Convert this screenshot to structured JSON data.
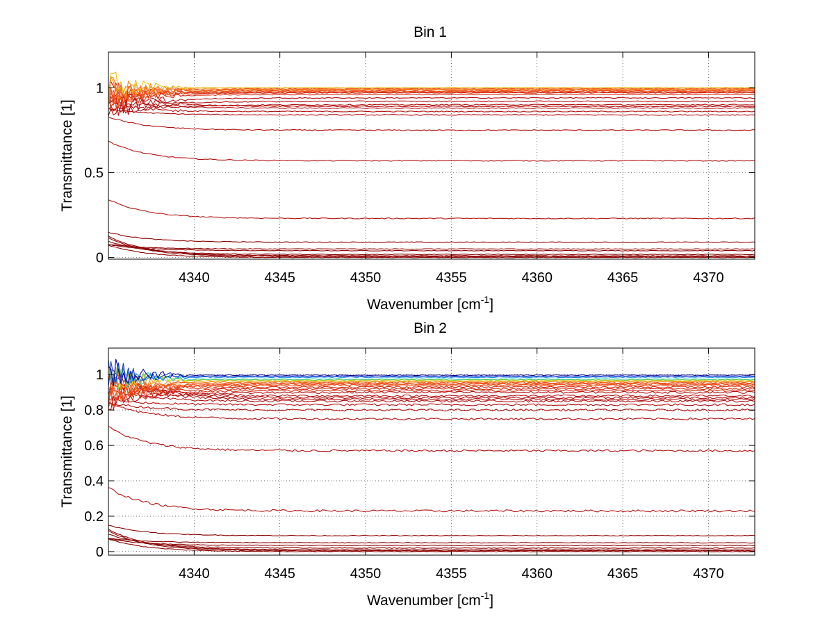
{
  "chart_data": [
    {
      "type": "line",
      "title": "Bin 1",
      "xlabel": "Wavenumber [cm",
      "xlabel_sup": "-1",
      "xlabel_end": "]",
      "ylabel": "Transmittance [1]",
      "xlim": [
        4335,
        4372.7
      ],
      "ylim": [
        -0.01,
        1.21
      ],
      "xticks": [
        4340,
        4345,
        4350,
        4355,
        4360,
        4365,
        4370
      ],
      "yticks": [
        0,
        0.5,
        1
      ],
      "ytick_labels": [
        "0",
        "0.5",
        "1"
      ],
      "grid": true,
      "series_groups": [
        {
          "color": "#8b0000",
          "levels": [
            0.0,
            0.005,
            0.01,
            0.018,
            0.04,
            0.05,
            0.09
          ],
          "start_offset": 0.12,
          "noise": 0.004
        },
        {
          "color": "#b21010",
          "levels": [
            0.23,
            0.57,
            0.75,
            0.84,
            0.86,
            0.88,
            0.89,
            0.9,
            0.92,
            0.94
          ],
          "start_offset": 0.12,
          "noise": 0.006
        },
        {
          "color": "#d4280f",
          "levels": [
            0.96,
            0.97,
            0.975
          ],
          "start_offset": 0.08,
          "noise": 0.005
        },
        {
          "color": "#f0501a",
          "levels": [
            0.98,
            0.985,
            0.99,
            0.995
          ],
          "start_offset": 0.1,
          "noise": 0.006
        },
        {
          "color": "#f78a1e",
          "levels": [
            0.99,
            1.0
          ],
          "start_offset": 0.05,
          "noise": 0.004
        },
        {
          "color": "#e9c21a",
          "levels": [
            1.0
          ],
          "start_offset": 0.0,
          "noise": 0.003
        }
      ]
    },
    {
      "type": "line",
      "title": "Bin 2",
      "xlabel": "Wavenumber [cm",
      "xlabel_sup": "-1",
      "xlabel_end": "]",
      "ylabel": "Transmittance [1]",
      "xlim": [
        4335,
        4372.7
      ],
      "ylim": [
        -0.02,
        1.15
      ],
      "xticks": [
        4340,
        4345,
        4350,
        4355,
        4360,
        4365,
        4370
      ],
      "yticks": [
        0,
        0.2,
        0.4,
        0.6,
        0.8,
        1
      ],
      "ytick_labels": [
        "0",
        "0.2",
        "0.4",
        "0.6",
        "0.8",
        "1"
      ],
      "grid": true,
      "series_groups": [
        {
          "color": "#8b0000",
          "levels": [
            0.0,
            0.005,
            0.01,
            0.02,
            0.035,
            0.05,
            0.09
          ],
          "start_offset": 0.12,
          "noise": 0.004
        },
        {
          "color": "#b21010",
          "levels": [
            0.23,
            0.57,
            0.75,
            0.8,
            0.83,
            0.85,
            0.86,
            0.87,
            0.88,
            0.9
          ],
          "start_offset": 0.14,
          "noise": 0.012
        },
        {
          "color": "#d4280f",
          "levels": [
            0.91,
            0.92,
            0.93
          ],
          "start_offset": 0.1,
          "noise": 0.01
        },
        {
          "color": "#f0501a",
          "levels": [
            0.94,
            0.945,
            0.95,
            0.955
          ],
          "start_offset": 0.12,
          "noise": 0.01
        },
        {
          "color": "#f78a1e",
          "levels": [
            0.96
          ],
          "start_offset": 0.06,
          "noise": 0.006
        },
        {
          "color": "#e9c21a",
          "levels": [
            0.965
          ],
          "start_offset": 0.0,
          "noise": 0.005
        },
        {
          "color": "#8cd23a",
          "levels": [
            0.97
          ],
          "start_offset": 0.0,
          "noise": 0.005
        },
        {
          "color": "#2ec7c0",
          "levels": [
            0.975
          ],
          "start_offset": 0.0,
          "noise": 0.005
        },
        {
          "color": "#1e8ce6",
          "levels": [
            0.985
          ],
          "start_offset": 0.0,
          "noise": 0.005
        },
        {
          "color": "#1a3bd1",
          "levels": [
            0.99
          ],
          "start_offset": 0.0,
          "noise": 0.005
        },
        {
          "color": "#00008f",
          "levels": [
            0.997
          ],
          "start_offset": 0.0,
          "noise": 0.004
        }
      ]
    }
  ]
}
